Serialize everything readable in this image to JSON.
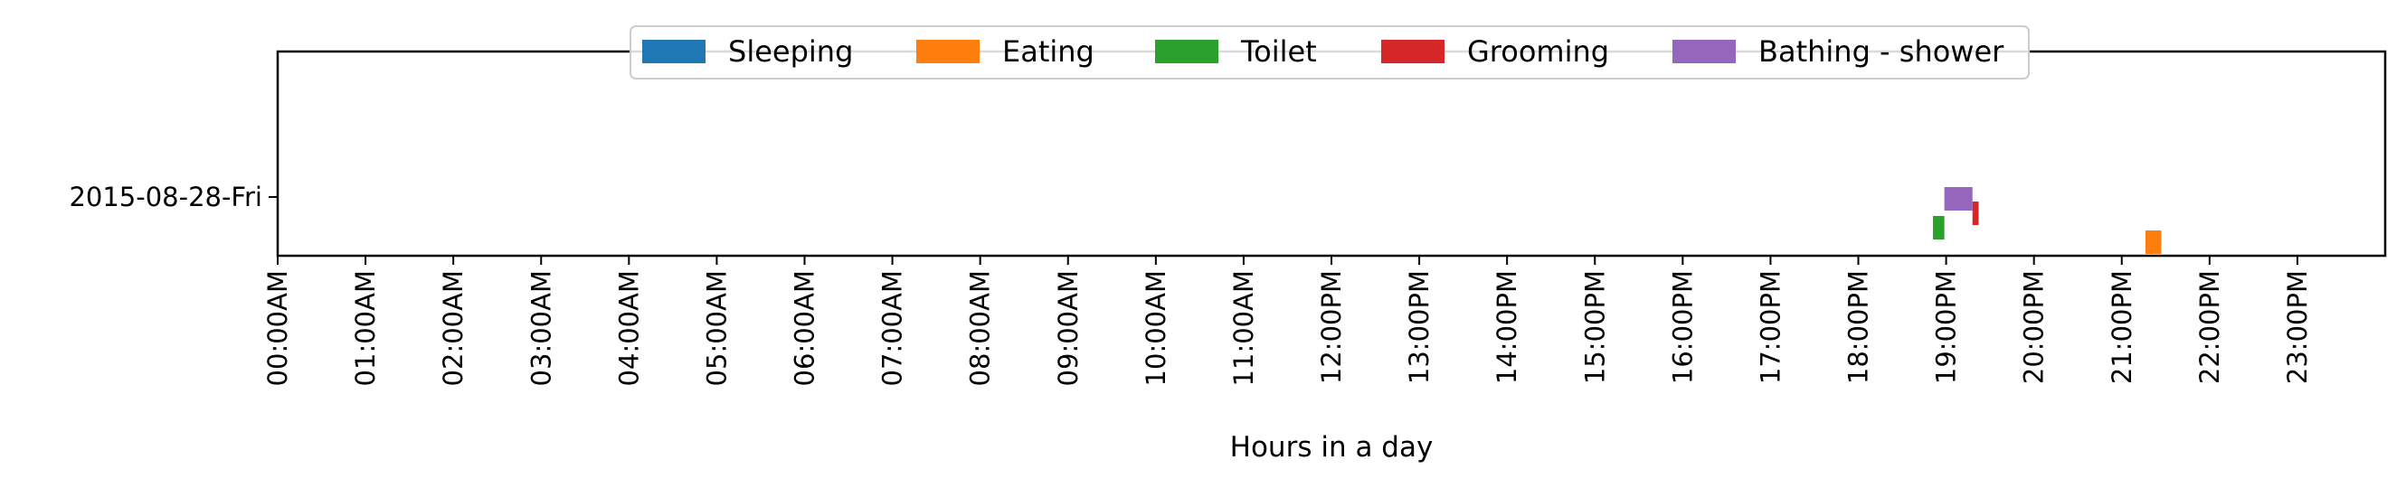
{
  "chart_data": {
    "type": "bar",
    "orientation": "horizontal-timeline",
    "title": "",
    "xlabel": "Hours in a day",
    "ylabel": "",
    "xlim": [
      0,
      24
    ],
    "grid": false,
    "legend_placement": "top-center",
    "x_ticks": [
      "00:00AM",
      "01:00AM",
      "02:00AM",
      "03:00AM",
      "04:00AM",
      "05:00AM",
      "06:00AM",
      "07:00AM",
      "08:00AM",
      "09:00AM",
      "10:00AM",
      "11:00AM",
      "12:00PM",
      "13:00PM",
      "14:00PM",
      "15:00PM",
      "16:00PM",
      "17:00PM",
      "18:00PM",
      "19:00PM",
      "20:00PM",
      "21:00PM",
      "22:00PM",
      "23:00PM"
    ],
    "categories": [
      "2015-08-28-Fri"
    ],
    "series": [
      {
        "name": "Sleeping",
        "color": "#1f77b4",
        "intervals": []
      },
      {
        "name": "Eating",
        "color": "#ff7f0e",
        "intervals": [
          {
            "start": 21.27,
            "end": 21.45
          }
        ]
      },
      {
        "name": "Toilet",
        "color": "#2ca02c",
        "intervals": [
          {
            "start": 18.85,
            "end": 18.98
          }
        ]
      },
      {
        "name": "Grooming",
        "color": "#d62728",
        "intervals": [
          {
            "start": 19.3,
            "end": 19.37
          }
        ]
      },
      {
        "name": "Bathing - shower",
        "color": "#9467bd",
        "intervals": [
          {
            "start": 18.98,
            "end": 19.3
          }
        ]
      }
    ]
  }
}
